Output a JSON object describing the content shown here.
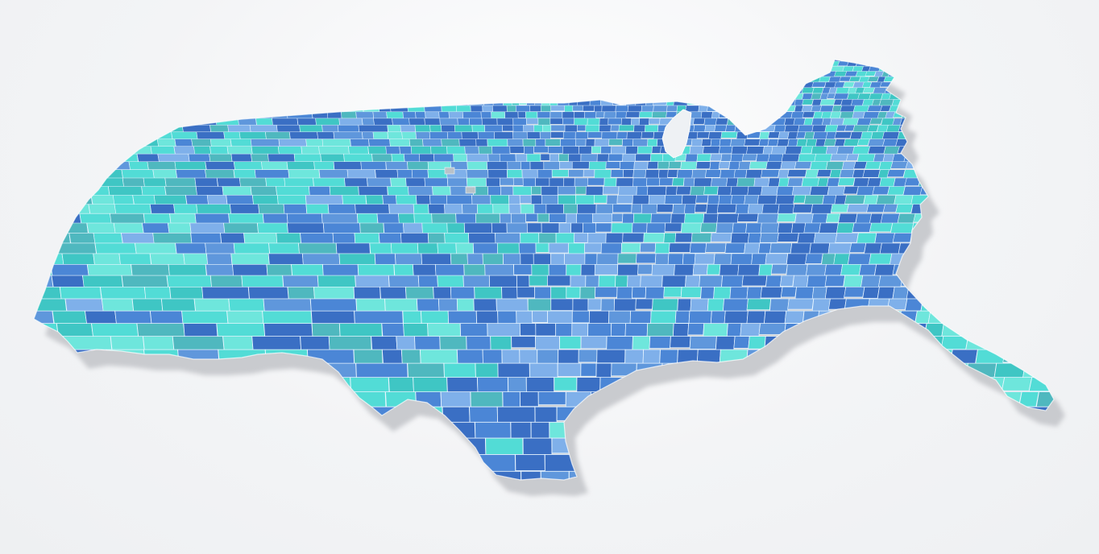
{
  "map": {
    "subject": "contiguous-united-states-counties",
    "style": "perspective-tilted-choropleth-with-drop-shadow",
    "background_color": "#eef0f2",
    "shadow_color": "#c9cbcf",
    "border_color": "#e9f6ff",
    "missing_color": "#b8c2c9",
    "palette": [
      "#3a6fc4",
      "#4b86d6",
      "#5f97dc",
      "#7fb0ea",
      "#4fb8bf",
      "#3fc6c4",
      "#52dcd6",
      "#6ee6dc"
    ],
    "regions": [
      {
        "id": "pacific-west",
        "tone": "cyan"
      },
      {
        "id": "mountain-west",
        "tone": "mixed-cyan-blue"
      },
      {
        "id": "great-plains",
        "tone": "mixed-blue-teal"
      },
      {
        "id": "midwest",
        "tone": "blue"
      },
      {
        "id": "south",
        "tone": "deep-blue"
      },
      {
        "id": "texas",
        "tone": "mixed-blue-teal"
      },
      {
        "id": "northeast",
        "tone": "mixed-teal-blue"
      },
      {
        "id": "florida",
        "tone": "cyan"
      }
    ],
    "lakes": [
      "lake-michigan"
    ]
  }
}
